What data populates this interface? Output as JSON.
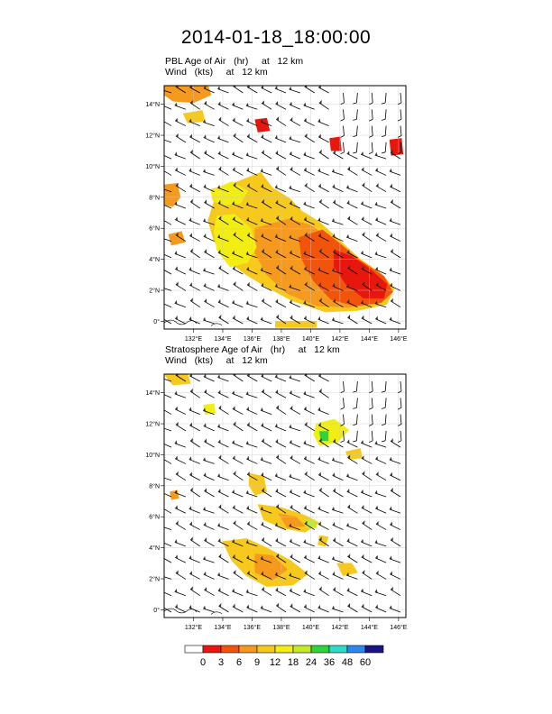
{
  "title": "2014-01-18_18:00:00",
  "palette": {
    "colors": [
      "#ffffff",
      "#e8170d",
      "#f2540c",
      "#f59a1e",
      "#f6c91c",
      "#f2ee14",
      "#c3ea2b",
      "#2fd33c",
      "#2edbc9",
      "#2e86ee",
      "#1b1480"
    ],
    "labels": [
      "0",
      "3",
      "6",
      "9",
      "12",
      "18",
      "24",
      "36",
      "48",
      "60"
    ]
  },
  "chart_data": [
    {
      "type": "map",
      "title_line1": "PBL Age of Air   (hr)     at   12 km",
      "title_line2": "Wind   (kts)     at   12 km",
      "x_range": [
        130.0,
        146.5
      ],
      "y_range": [
        -0.5,
        15.2
      ],
      "x_ticks": [
        132,
        134,
        136,
        138,
        140,
        142,
        144,
        146
      ],
      "y_ticks": [
        0,
        2,
        4,
        6,
        8,
        10,
        12,
        14
      ],
      "x_tick_labels": [
        "132°E",
        "134°E",
        "136°E",
        "138°E",
        "140°E",
        "142°E",
        "144°E",
        "146°E"
      ],
      "y_tick_labels": [
        "0°",
        "2°N",
        "4°N",
        "6°N",
        "8°N",
        "10°N",
        "12°N",
        "14°N"
      ],
      "field": "age of air from planetary boundary layer, estimated shaded regions",
      "regions": [
        {
          "bin": 4,
          "pts": [
            [
              133.2,
              8.5
            ],
            [
              135.0,
              9.0
            ],
            [
              136.6,
              9.6
            ],
            [
              137.4,
              8.6
            ],
            [
              138.6,
              7.9
            ],
            [
              139.4,
              7.1
            ],
            [
              140.6,
              6.4
            ],
            [
              142.0,
              5.2
            ],
            [
              143.4,
              4.0
            ],
            [
              144.8,
              3.1
            ],
            [
              145.7,
              2.1
            ],
            [
              145.2,
              1.1
            ],
            [
              143.2,
              0.7
            ],
            [
              141.0,
              0.6
            ],
            [
              138.8,
              1.3
            ],
            [
              137.0,
              2.2
            ],
            [
              135.6,
              3.0
            ],
            [
              134.2,
              4.0
            ],
            [
              133.4,
              5.2
            ],
            [
              133.0,
              6.5
            ],
            [
              133.4,
              7.7
            ]
          ]
        },
        {
          "bin": 3,
          "pts": [
            [
              136.2,
              6.0
            ],
            [
              138.5,
              6.6
            ],
            [
              140.0,
              6.2
            ],
            [
              141.5,
              5.2
            ],
            [
              143.0,
              4.0
            ],
            [
              144.5,
              3.0
            ],
            [
              145.4,
              2.0
            ],
            [
              144.6,
              1.2
            ],
            [
              142.6,
              0.9
            ],
            [
              140.4,
              1.0
            ],
            [
              138.4,
              1.8
            ],
            [
              137.0,
              3.0
            ],
            [
              136.2,
              4.4
            ]
          ]
        },
        {
          "bin": 2,
          "pts": [
            [
              139.2,
              5.4
            ],
            [
              140.8,
              5.9
            ],
            [
              142.0,
              5.0
            ],
            [
              143.4,
              3.9
            ],
            [
              145.0,
              2.9
            ],
            [
              145.6,
              1.9
            ],
            [
              144.8,
              1.2
            ],
            [
              143.0,
              1.0
            ],
            [
              141.4,
              1.4
            ],
            [
              140.2,
              2.6
            ],
            [
              139.4,
              4.0
            ]
          ]
        },
        {
          "bin": 1,
          "pts": [
            [
              141.6,
              4.6
            ],
            [
              142.8,
              4.2
            ],
            [
              144.0,
              3.4
            ],
            [
              145.2,
              2.4
            ],
            [
              145.0,
              1.5
            ],
            [
              143.6,
              1.5
            ],
            [
              142.4,
              2.4
            ],
            [
              141.6,
              3.5
            ]
          ]
        },
        {
          "bin": 5,
          "pts": [
            [
              133.6,
              6.8
            ],
            [
              134.8,
              6.9
            ],
            [
              135.9,
              6.0
            ],
            [
              136.3,
              4.8
            ],
            [
              135.7,
              3.8
            ],
            [
              134.5,
              3.5
            ],
            [
              133.6,
              4.6
            ],
            [
              133.4,
              5.8
            ]
          ]
        },
        {
          "bin": 5,
          "pts": [
            [
              133.2,
              8.4
            ],
            [
              134.6,
              9.0
            ],
            [
              135.7,
              8.4
            ],
            [
              135.2,
              7.6
            ],
            [
              134.0,
              7.5
            ],
            [
              133.3,
              7.8
            ]
          ]
        },
        {
          "bin": 3,
          "pts": [
            [
              130.0,
              8.8
            ],
            [
              130.9,
              8.9
            ],
            [
              131.1,
              8.0
            ],
            [
              130.6,
              7.4
            ],
            [
              130.0,
              7.5
            ]
          ]
        },
        {
          "bin": 3,
          "pts": [
            [
              130.3,
              5.6
            ],
            [
              131.2,
              5.8
            ],
            [
              131.4,
              5.1
            ],
            [
              130.5,
              4.9
            ]
          ]
        },
        {
          "bin": 3,
          "pts": [
            [
              130.0,
              15.2
            ],
            [
              133.0,
              15.2
            ],
            [
              133.2,
              14.6
            ],
            [
              132.0,
              14.1
            ],
            [
              130.6,
              14.2
            ],
            [
              130.0,
              14.6
            ]
          ]
        },
        {
          "bin": 4,
          "pts": [
            [
              131.3,
              13.4
            ],
            [
              132.6,
              13.6
            ],
            [
              132.8,
              12.9
            ],
            [
              131.6,
              12.8
            ]
          ]
        },
        {
          "bin": 1,
          "pts": [
            [
              136.2,
              13.0
            ],
            [
              137.0,
              13.1
            ],
            [
              137.2,
              12.3
            ],
            [
              136.4,
              12.2
            ]
          ]
        },
        {
          "bin": 1,
          "pts": [
            [
              141.3,
              11.8
            ],
            [
              142.0,
              11.9
            ],
            [
              142.1,
              11.0
            ],
            [
              141.4,
              11.0
            ]
          ]
        },
        {
          "bin": 1,
          "pts": [
            [
              145.4,
              11.7
            ],
            [
              146.2,
              11.8
            ],
            [
              146.3,
              10.8
            ],
            [
              145.5,
              10.7
            ]
          ]
        },
        {
          "bin": 4,
          "pts": [
            [
              137.6,
              0.0
            ],
            [
              140.4,
              0.0
            ],
            [
              140.4,
              -0.4
            ],
            [
              137.6,
              -0.4
            ]
          ]
        }
      ],
      "wind_barbs": "uniform grid, mostly westerly 10-30 kts, southerly in northeast"
    },
    {
      "type": "map",
      "title_line1": "Stratosphere Age of Air   (hr)     at   12 km",
      "title_line2": "Wind   (kts)     at   12 km",
      "x_range": [
        130.0,
        146.5
      ],
      "y_range": [
        -0.5,
        15.2
      ],
      "x_ticks": [
        132,
        134,
        136,
        138,
        140,
        142,
        144,
        146
      ],
      "y_ticks": [
        0,
        2,
        4,
        6,
        8,
        10,
        12,
        14
      ],
      "x_tick_labels": [
        "132°E",
        "134°E",
        "136°E",
        "138°E",
        "140°E",
        "142°E",
        "144°E",
        "146°E"
      ],
      "y_tick_labels": [
        "0°",
        "2°N",
        "4°N",
        "6°N",
        "8°N",
        "10°N",
        "12°N",
        "14°N"
      ],
      "field": "age of air from stratosphere, estimated shaded regions",
      "regions": [
        {
          "bin": 4,
          "pts": [
            [
              134.0,
              4.4
            ],
            [
              135.6,
              4.6
            ],
            [
              137.0,
              4.0
            ],
            [
              138.6,
              3.2
            ],
            [
              139.8,
              2.3
            ],
            [
              138.8,
              1.6
            ],
            [
              137.0,
              1.5
            ],
            [
              135.6,
              2.2
            ],
            [
              134.6,
              3.2
            ]
          ]
        },
        {
          "bin": 3,
          "pts": [
            [
              136.2,
              3.6
            ],
            [
              137.4,
              3.5
            ],
            [
              138.4,
              2.6
            ],
            [
              137.4,
              1.9
            ],
            [
              136.2,
              2.4
            ]
          ]
        },
        {
          "bin": 4,
          "pts": [
            [
              136.4,
              6.8
            ],
            [
              138.0,
              6.6
            ],
            [
              139.6,
              6.1
            ],
            [
              140.6,
              5.6
            ],
            [
              139.6,
              5.0
            ],
            [
              138.0,
              5.3
            ],
            [
              136.8,
              5.8
            ]
          ]
        },
        {
          "bin": 3,
          "pts": [
            [
              137.8,
              6.2
            ],
            [
              139.0,
              6.0
            ],
            [
              139.6,
              5.4
            ],
            [
              138.4,
              5.3
            ]
          ]
        },
        {
          "bin": 6,
          "pts": [
            [
              139.6,
              5.8
            ],
            [
              140.3,
              5.8
            ],
            [
              140.4,
              5.3
            ],
            [
              139.7,
              5.3
            ]
          ]
        },
        {
          "bin": 4,
          "pts": [
            [
              135.8,
              8.8
            ],
            [
              136.8,
              8.6
            ],
            [
              137.0,
              7.6
            ],
            [
              136.2,
              7.4
            ],
            [
              135.8,
              8.0
            ]
          ]
        },
        {
          "bin": 5,
          "pts": [
            [
              140.4,
              12.0
            ],
            [
              141.6,
              12.3
            ],
            [
              142.6,
              11.6
            ],
            [
              141.8,
              10.8
            ],
            [
              140.6,
              10.6
            ],
            [
              140.2,
              11.3
            ]
          ]
        },
        {
          "bin": 7,
          "pts": [
            [
              140.6,
              11.5
            ],
            [
              141.2,
              11.5
            ],
            [
              141.2,
              10.9
            ],
            [
              140.7,
              10.9
            ]
          ]
        },
        {
          "bin": 4,
          "pts": [
            [
              141.8,
              3.0
            ],
            [
              142.8,
              3.0
            ],
            [
              143.2,
              2.4
            ],
            [
              142.2,
              2.2
            ]
          ]
        },
        {
          "bin": 4,
          "pts": [
            [
              140.6,
              4.8
            ],
            [
              141.2,
              4.7
            ],
            [
              141.0,
              4.1
            ],
            [
              140.5,
              4.2
            ]
          ]
        },
        {
          "bin": 4,
          "pts": [
            [
              130.0,
              15.2
            ],
            [
              131.6,
              15.2
            ],
            [
              131.8,
              14.6
            ],
            [
              130.6,
              14.5
            ]
          ]
        },
        {
          "bin": 5,
          "pts": [
            [
              132.7,
              13.2
            ],
            [
              133.4,
              13.3
            ],
            [
              133.5,
              12.7
            ],
            [
              132.8,
              12.6
            ]
          ]
        },
        {
          "bin": 4,
          "pts": [
            [
              142.4,
              10.2
            ],
            [
              143.4,
              10.4
            ],
            [
              143.5,
              9.8
            ],
            [
              142.6,
              9.7
            ]
          ]
        },
        {
          "bin": 3,
          "pts": [
            [
              130.4,
              7.6
            ],
            [
              130.9,
              7.7
            ],
            [
              131.0,
              7.2
            ],
            [
              130.5,
              7.1
            ]
          ]
        }
      ],
      "wind_barbs": "uniform grid, mostly westerly 10-30 kts, southerly in northeast"
    }
  ]
}
